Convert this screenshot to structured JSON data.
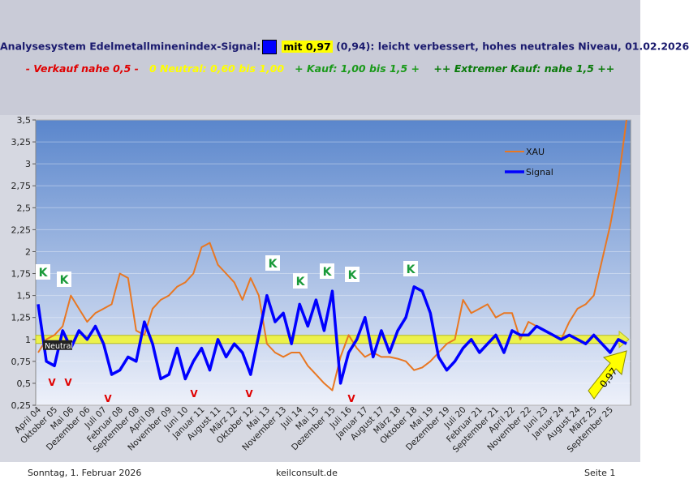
{
  "header": {
    "title_prefix": "Analysesystem Edelmetallminenindex-Signal:",
    "title_highlight": "mit 0,97",
    "title_rest": "(0,94): leicht verbessert, hohes neutrales Niveau, 01.02.2026",
    "scale_sell": "- Verkauf nahe 0,5 -",
    "scale_neutral": "0 Neutral: 0,60 bis 1,00",
    "scale_buy": "+ Kauf: 1,00 bis 1,5 +",
    "scale_extreme": "++ Extremer Kauf: nahe 1,5 ++"
  },
  "chart_data": {
    "type": "line",
    "categories": [
      "April 04",
      null,
      "Oktober 05",
      null,
      "Mai 06",
      null,
      "Dezember 06",
      null,
      "Juli 07",
      null,
      "Februar 08",
      null,
      "September 08",
      null,
      "April 09",
      null,
      "November 09",
      null,
      "Juni 10",
      null,
      "Januar 11",
      null,
      "August 11",
      null,
      "März 12",
      null,
      "Oktober 12",
      null,
      "Mai 13",
      null,
      "November 13",
      null,
      "Juli 14",
      null,
      "Mai 15",
      null,
      "Dezember 15",
      null,
      "Juli 16",
      null,
      "Januar 17",
      null,
      "August 17",
      null,
      "März 18",
      null,
      "Oktober 18",
      null,
      "Mai 19",
      null,
      "Dezember 19",
      null,
      "Juli 20",
      null,
      "Februar 21",
      null,
      "September 21",
      null,
      "April 22",
      null,
      "November 22",
      null,
      "Juni 23",
      null,
      "Januar 24",
      null,
      "August 24",
      null,
      "März 25",
      null,
      "September 25",
      null,
      null
    ],
    "series": [
      {
        "name": "XAU",
        "color": "#e87722",
        "values": [
          0.85,
          1.0,
          1.05,
          1.15,
          1.5,
          1.35,
          1.2,
          1.3,
          1.35,
          1.4,
          1.75,
          1.7,
          1.1,
          1.05,
          1.35,
          1.45,
          1.5,
          1.6,
          1.65,
          1.75,
          2.05,
          2.1,
          1.85,
          1.75,
          1.65,
          1.45,
          1.7,
          1.5,
          0.95,
          0.85,
          0.8,
          0.85,
          0.85,
          0.7,
          0.6,
          0.5,
          0.42,
          0.8,
          1.05,
          0.9,
          0.8,
          0.85,
          0.8,
          0.8,
          0.78,
          0.75,
          0.65,
          0.68,
          0.75,
          0.85,
          0.95,
          1.0,
          1.45,
          1.3,
          1.35,
          1.4,
          1.25,
          1.3,
          1.3,
          1.0,
          1.2,
          1.15,
          1.1,
          1.05,
          1.0,
          1.2,
          1.35,
          1.4,
          1.5,
          1.9,
          2.3,
          2.8,
          3.5
        ]
      },
      {
        "name": "Signal",
        "color": "#0000ff",
        "values": [
          1.4,
          0.75,
          0.7,
          1.1,
          0.9,
          1.1,
          1.0,
          1.15,
          0.95,
          0.6,
          0.65,
          0.8,
          0.75,
          1.2,
          0.95,
          0.55,
          0.6,
          0.9,
          0.55,
          0.75,
          0.9,
          0.65,
          1.0,
          0.8,
          0.95,
          0.85,
          0.6,
          1.05,
          1.5,
          1.2,
          1.3,
          0.95,
          1.4,
          1.15,
          1.45,
          1.1,
          1.55,
          0.5,
          0.85,
          1.0,
          1.25,
          0.8,
          1.1,
          0.85,
          1.1,
          1.25,
          1.6,
          1.55,
          1.3,
          0.8,
          0.65,
          0.75,
          0.9,
          1.0,
          0.85,
          0.95,
          1.05,
          0.85,
          1.1,
          1.05,
          1.05,
          1.15,
          1.1,
          1.05,
          1.0,
          1.05,
          1.0,
          0.95,
          1.05,
          0.95,
          0.85,
          1.0,
          0.95
        ]
      }
    ],
    "ylim": [
      0.25,
      3.5
    ],
    "yticks": [
      {
        "value": 0.25,
        "label": "0,25"
      },
      {
        "value": 0.5,
        "label": "0,5"
      },
      {
        "value": 0.75,
        "label": "0,75"
      },
      1,
      {
        "value": 1.25,
        "label": "1,25"
      },
      {
        "value": 1.5,
        "label": "1,5"
      },
      {
        "value": 1.75,
        "label": "1,75"
      },
      2,
      {
        "value": 2.25,
        "label": "2,25"
      },
      {
        "value": 2.5,
        "label": "2,5"
      },
      {
        "value": 2.75,
        "label": "2,75"
      },
      3,
      {
        "value": 3.25,
        "label": "3,25"
      },
      {
        "value": 3.5,
        "label": "3,5"
      }
    ],
    "annotations": {
      "buy": [
        "K",
        "K",
        "K",
        "K",
        "K",
        "K",
        "K"
      ],
      "sell": [
        "V",
        "V",
        "V",
        "V",
        "V",
        "V"
      ],
      "neutral": "Neutral",
      "current": "0,97"
    }
  },
  "footer": {
    "date": "Sonntag, 1. Februar 2026",
    "site": "keilconsult.de",
    "page": "Seite 1"
  }
}
